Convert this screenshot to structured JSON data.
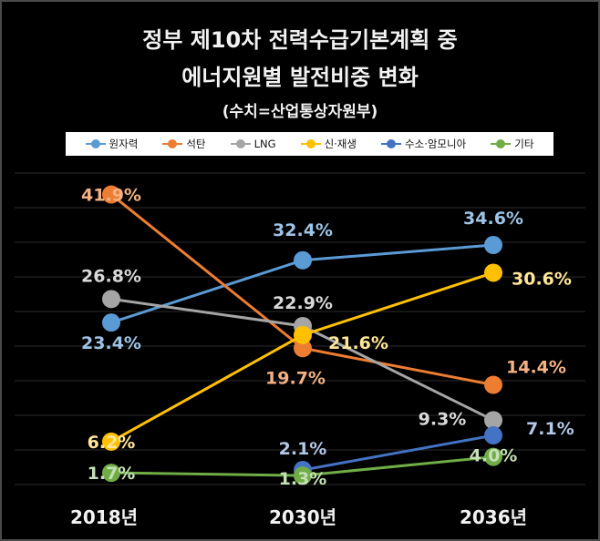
{
  "title_line1": "정부 제10차 전력수급기본계획 중",
  "title_line2": "에너지원별 발전비중 변화",
  "subtitle": "(수치=산업통상자원부)",
  "chart_data": {
    "type": "line",
    "categories": [
      "2018년",
      "2030년",
      "2036년"
    ],
    "series": [
      {
        "name": "원자력",
        "color": "#5b9bd5",
        "label_color": "#9dc3e6",
        "values": [
          23.4,
          32.4,
          34.6
        ],
        "labels": [
          "23.4%",
          "32.4%",
          "34.6%"
        ]
      },
      {
        "name": "석탄",
        "color": "#ed7d31",
        "label_color": "#f4b183",
        "values": [
          41.9,
          19.7,
          14.4
        ],
        "labels": [
          "41.9%",
          "19.7%",
          "14.4%"
        ]
      },
      {
        "name": "LNG",
        "color": "#a5a5a5",
        "label_color": "#d9d9d9",
        "values": [
          26.8,
          22.9,
          9.3
        ],
        "labels": [
          "26.8%",
          "22.9%",
          "9.3%"
        ]
      },
      {
        "name": "신·재생",
        "color": "#ffc000",
        "label_color": "#ffe699",
        "values": [
          6.2,
          21.6,
          30.6
        ],
        "labels": [
          "6.2%",
          "21.6%",
          "30.6%"
        ]
      },
      {
        "name": "수소·암모니아",
        "color": "#4472c4",
        "label_color": "#b4c7e7",
        "values": [
          null,
          2.1,
          7.1
        ],
        "labels": [
          "",
          "2.1%",
          "7.1%"
        ]
      },
      {
        "name": "기타",
        "color": "#70ad47",
        "label_color": "#c5e0b4",
        "values": [
          1.7,
          1.3,
          4.0
        ],
        "labels": [
          "1.7%",
          "1.3%",
          "4.0%"
        ]
      }
    ],
    "ylim": [
      0,
      45
    ],
    "grid": true,
    "legend_position": "top"
  }
}
